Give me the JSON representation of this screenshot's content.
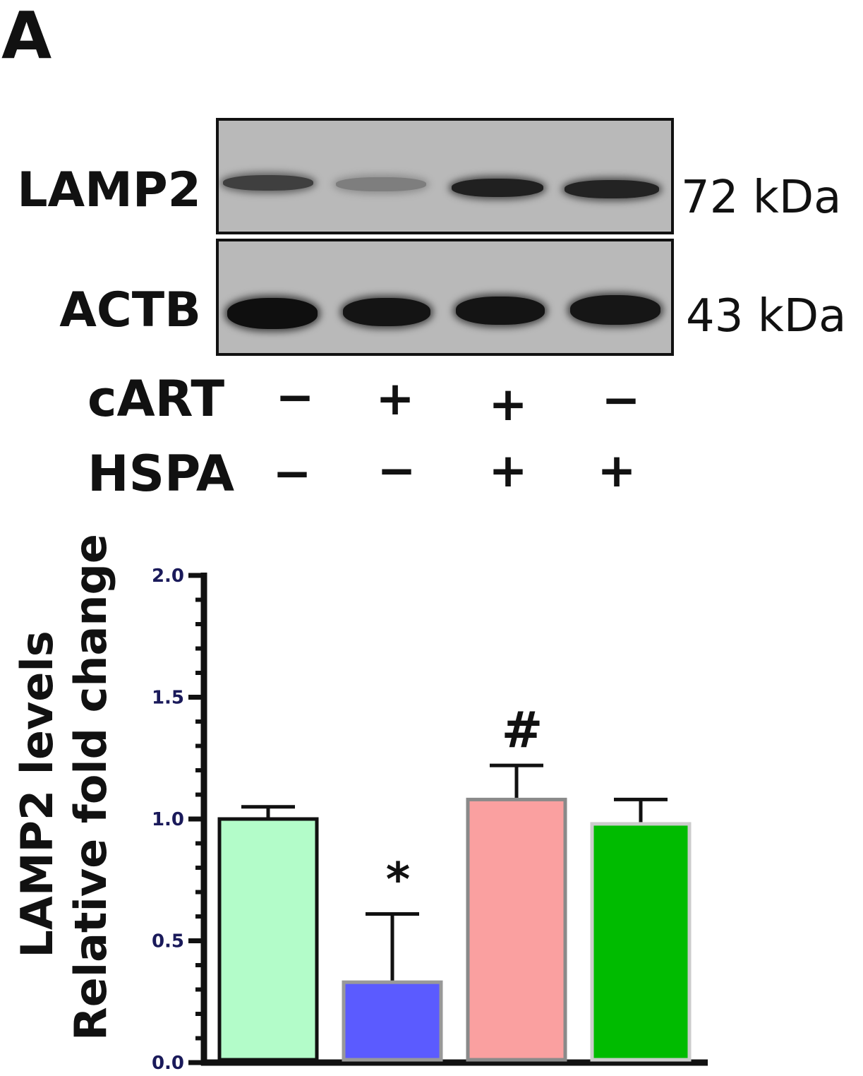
{
  "panel_letter": "A",
  "blot": {
    "rows": [
      {
        "label": "LAMP2",
        "size": "72 kDa",
        "band_intensity": [
          0.72,
          0.35,
          0.9,
          0.88
        ]
      },
      {
        "label": "ACTB",
        "size": "43 kDa",
        "band_intensity": [
          1.0,
          0.97,
          0.97,
          0.96
        ]
      }
    ]
  },
  "treatments": [
    {
      "name": "cART",
      "signs": [
        "−",
        "+",
        "+",
        "−"
      ]
    },
    {
      "name": "HSPA",
      "signs": [
        "−",
        "−",
        "+",
        "+"
      ]
    }
  ],
  "chart_data": {
    "type": "bar",
    "ylabel": "LAMP2 levels\nRelative fold change",
    "ylabel_lines": [
      "LAMP2 levels",
      "Relative fold change"
    ],
    "ylim": [
      0,
      2.0
    ],
    "yticks": [
      0.0,
      0.5,
      1.0,
      1.5,
      2.0
    ],
    "ytick_labels": [
      "0.0",
      "0.5",
      "1.0",
      "1.5",
      "2.0"
    ],
    "grid": false,
    "values": [
      1.0,
      0.33,
      1.08,
      0.98
    ],
    "errors": [
      0.05,
      0.28,
      0.14,
      0.1
    ],
    "annotations": [
      "",
      "*",
      "#",
      ""
    ],
    "colors": [
      "#b3fcc9",
      "#5b5bff",
      "#faa0a0",
      "#00bb00"
    ],
    "edge_colors": [
      "#111111",
      "#999999",
      "#8a8a8a",
      "#cccccc"
    ]
  }
}
